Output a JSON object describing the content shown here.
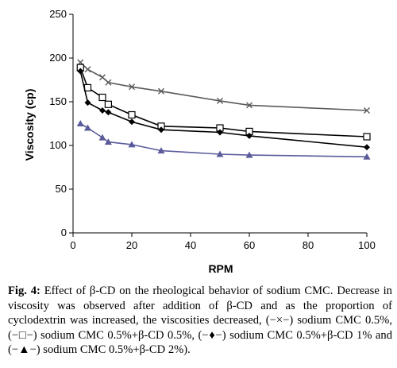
{
  "chart_data": {
    "type": "line",
    "title": "",
    "xlabel": "RPM",
    "ylabel": "Viscosity (cp)",
    "xlim": [
      0,
      100
    ],
    "ylim": [
      0,
      250
    ],
    "x_ticks": [
      "0",
      "20",
      "40",
      "60",
      "80",
      "100"
    ],
    "y_ticks": [
      "0",
      "50",
      "100",
      "150",
      "200",
      "250"
    ],
    "grid": false,
    "legend": "none",
    "series": [
      {
        "marker": "x",
        "color": "#5a5a5a",
        "x": [
          2.5,
          5,
          10,
          12,
          20,
          30,
          50,
          60,
          100
        ],
        "y": [
          195,
          187,
          178,
          172,
          167,
          162,
          151,
          146,
          140
        ]
      },
      {
        "marker": "square",
        "color": "#000000",
        "x": [
          2.5,
          5,
          10,
          12,
          20,
          30,
          50,
          60,
          100
        ],
        "y": [
          189,
          166,
          155,
          147,
          135,
          122,
          120,
          116,
          110
        ]
      },
      {
        "marker": "diamond",
        "color": "#000000",
        "x": [
          2.5,
          5,
          10,
          12,
          20,
          30,
          50,
          60,
          100
        ],
        "y": [
          185,
          149,
          140,
          138,
          127,
          118,
          115,
          111,
          98
        ]
      },
      {
        "marker": "triangle",
        "color": "#5b5b9c",
        "x": [
          2.5,
          5,
          10,
          12,
          20,
          30,
          50,
          60,
          100
        ],
        "y": [
          125,
          120,
          109,
          104,
          101,
          94,
          90,
          89,
          87
        ]
      }
    ]
  },
  "caption": {
    "label": "Fig. 4:",
    "text": "Effect of β-CD on the rheological behavior of sodium CMC. Decrease in viscosity was observed after addition of β-CD and as the proportion of cyclodextrin was increased, the viscosities decreased, (−×−) sodium CMC 0.5%, (−□−) sodium CMC 0.5%+β-CD 0.5%, (−♦−) sodium CMC 0.5%+β-CD 1% and (−▲−) sodium CMC 0.5%+β-CD 2%)."
  }
}
